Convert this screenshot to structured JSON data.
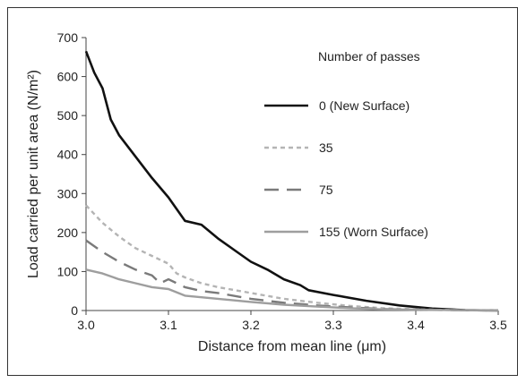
{
  "chart_data": {
    "type": "line",
    "title": "",
    "xlabel": "Distance from mean line (μm)",
    "ylabel": "Load carried per unit area (N/m²)",
    "xlim": [
      3.0,
      3.5
    ],
    "ylim": [
      0,
      700
    ],
    "xticks": [
      "3.0",
      "3.1",
      "3.2",
      "3.3",
      "3.4",
      "3.5"
    ],
    "yticks": [
      "0",
      "100",
      "200",
      "300",
      "400",
      "500",
      "600",
      "700"
    ],
    "grid": false,
    "legend_title": "Number of passes",
    "legend_position": "top-right",
    "series": [
      {
        "name": "0 (New Surface)",
        "color": "#111111",
        "dash": "solid",
        "x": [
          3.0,
          3.01,
          3.02,
          3.03,
          3.04,
          3.06,
          3.08,
          3.1,
          3.12,
          3.14,
          3.16,
          3.18,
          3.2,
          3.22,
          3.24,
          3.26,
          3.27,
          3.3,
          3.34,
          3.38,
          3.42,
          3.46,
          3.5
        ],
        "y": [
          665,
          610,
          570,
          490,
          450,
          395,
          340,
          290,
          230,
          220,
          185,
          155,
          125,
          105,
          80,
          65,
          52,
          40,
          25,
          13,
          5,
          1,
          0
        ]
      },
      {
        "name": "35",
        "color": "#b4b4b4",
        "dash": "dotted",
        "x": [
          3.0,
          3.02,
          3.04,
          3.06,
          3.08,
          3.1,
          3.11,
          3.12,
          3.14,
          3.16,
          3.2,
          3.24,
          3.28,
          3.32,
          3.36,
          3.4,
          3.45,
          3.5
        ],
        "y": [
          270,
          225,
          190,
          160,
          140,
          120,
          95,
          85,
          70,
          60,
          45,
          30,
          20,
          12,
          6,
          3,
          1,
          0
        ]
      },
      {
        "name": "75",
        "color": "#7a7a7a",
        "dash": "dashed",
        "x": [
          3.0,
          3.02,
          3.04,
          3.06,
          3.08,
          3.09,
          3.1,
          3.12,
          3.14,
          3.16,
          3.2,
          3.24,
          3.28,
          3.32,
          3.36,
          3.4,
          3.45,
          3.5
        ],
        "y": [
          180,
          150,
          125,
          105,
          90,
          70,
          80,
          60,
          50,
          45,
          30,
          20,
          13,
          8,
          4,
          2,
          1,
          0
        ]
      },
      {
        "name": "155 (Worn Surface)",
        "color": "#9e9e9e",
        "dash": "solid",
        "x": [
          3.0,
          3.02,
          3.04,
          3.06,
          3.08,
          3.1,
          3.12,
          3.16,
          3.2,
          3.24,
          3.28,
          3.32,
          3.36,
          3.4,
          3.45,
          3.5
        ],
        "y": [
          105,
          95,
          80,
          70,
          60,
          55,
          38,
          30,
          22,
          15,
          10,
          6,
          3,
          2,
          1,
          0
        ]
      }
    ]
  }
}
